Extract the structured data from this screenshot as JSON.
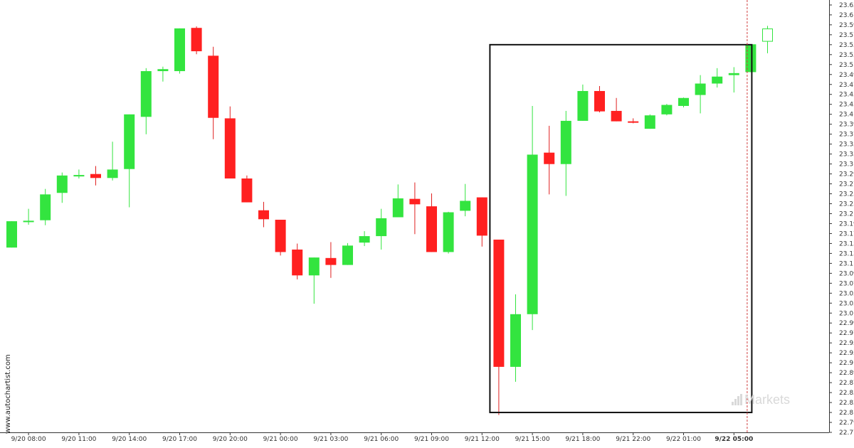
{
  "watermark": "www.autochartist.com",
  "brand": {
    "logo_text": "Markets",
    "icon": "bar-chart-logo-icon"
  },
  "colors": {
    "up": "#33e43f",
    "down": "#ff2020",
    "wick": "#33e43f",
    "wick_down": "#e02020",
    "pattern_box": "#111111",
    "current_line": "#d04040"
  },
  "chart_data": {
    "type": "candlestick",
    "title": "",
    "xlabel": "",
    "ylabel": "",
    "ylim": [
      22.7722,
      23.6321
    ],
    "y_ticks": [
      "23.6321",
      "23.6122",
      "23.5922",
      "23.5722",
      "23.5522",
      "23.5322",
      "23.5122",
      "23.4922",
      "23.4722",
      "23.4522",
      "23.4322",
      "23.4122",
      "23.3922",
      "23.3722",
      "23.3522",
      "23.3322",
      "23.3122",
      "23.2922",
      "23.2722",
      "23.2522",
      "23.2322",
      "23.2122",
      "23.1922",
      "23.1722",
      "23.1522",
      "23.1322",
      "23.1122",
      "23.0922",
      "23.0722",
      "23.0522",
      "23.0322",
      "23.0122",
      "22.9922",
      "22.9722",
      "22.9522",
      "22.9322",
      "22.9122",
      "22.8922",
      "22.8722",
      "22.8522",
      "22.8322",
      "22.8122",
      "22.7922",
      "22.7722"
    ],
    "x_ticks": [
      {
        "label": "9/20 08:00",
        "index": 1
      },
      {
        "label": "9/20 11:00",
        "index": 4
      },
      {
        "label": "9/20 14:00",
        "index": 7
      },
      {
        "label": "9/20 17:00",
        "index": 10
      },
      {
        "label": "9/20 20:00",
        "index": 13
      },
      {
        "label": "9/21 00:00",
        "index": 16
      },
      {
        "label": "9/21 03:00",
        "index": 19
      },
      {
        "label": "9/21 06:00",
        "index": 22
      },
      {
        "label": "9/21 09:00",
        "index": 25
      },
      {
        "label": "9/21 12:00",
        "index": 28
      },
      {
        "label": "9/21 15:00",
        "index": 31
      },
      {
        "label": "9/21 18:00",
        "index": 34
      },
      {
        "label": "9/21 22:00",
        "index": 37
      },
      {
        "label": "9/22 01:00",
        "index": 40
      },
      {
        "label": "9/22 05:00",
        "index": 43,
        "bold": true
      }
    ],
    "candles": [
      {
        "o": 23.144,
        "c": 23.197,
        "h": 23.197,
        "l": 23.144
      },
      {
        "o": 23.197,
        "c": 23.198,
        "h": 23.222,
        "l": 23.19
      },
      {
        "o": 23.199,
        "c": 23.251,
        "h": 23.262,
        "l": 23.189
      },
      {
        "o": 23.254,
        "c": 23.289,
        "h": 23.295,
        "l": 23.234
      },
      {
        "o": 23.289,
        "c": 23.29,
        "h": 23.301,
        "l": 23.283
      },
      {
        "o": 23.292,
        "c": 23.284,
        "h": 23.308,
        "l": 23.269
      },
      {
        "o": 23.284,
        "c": 23.301,
        "h": 23.357,
        "l": 23.279
      },
      {
        "o": 23.302,
        "c": 23.412,
        "h": 23.412,
        "l": 23.225
      },
      {
        "o": 23.407,
        "c": 23.499,
        "h": 23.505,
        "l": 23.372
      },
      {
        "o": 23.499,
        "c": 23.503,
        "h": 23.508,
        "l": 23.478
      },
      {
        "o": 23.499,
        "c": 23.585,
        "h": 23.585,
        "l": 23.494
      },
      {
        "o": 23.586,
        "c": 23.539,
        "h": 23.589,
        "l": 23.533
      },
      {
        "o": 23.53,
        "c": 23.405,
        "h": 23.548,
        "l": 23.362
      },
      {
        "o": 23.404,
        "c": 23.283,
        "h": 23.428,
        "l": 23.283
      },
      {
        "o": 23.283,
        "c": 23.235,
        "h": 23.289,
        "l": 23.235
      },
      {
        "o": 23.219,
        "c": 23.201,
        "h": 23.236,
        "l": 23.185
      },
      {
        "o": 23.2,
        "c": 23.135,
        "h": 23.2,
        "l": 23.128
      },
      {
        "o": 23.14,
        "c": 23.088,
        "h": 23.152,
        "l": 23.08
      },
      {
        "o": 23.088,
        "c": 23.124,
        "h": 23.124,
        "l": 23.031
      },
      {
        "o": 23.123,
        "c": 23.109,
        "h": 23.155,
        "l": 23.083
      },
      {
        "o": 23.109,
        "c": 23.148,
        "h": 23.153,
        "l": 23.109
      },
      {
        "o": 23.154,
        "c": 23.167,
        "h": 23.177,
        "l": 23.147
      },
      {
        "o": 23.167,
        "c": 23.203,
        "h": 23.222,
        "l": 23.14
      },
      {
        "o": 23.205,
        "c": 23.243,
        "h": 23.271,
        "l": 23.205
      },
      {
        "o": 23.242,
        "c": 23.231,
        "h": 23.275,
        "l": 23.171
      },
      {
        "o": 23.227,
        "c": 23.135,
        "h": 23.253,
        "l": 23.135
      },
      {
        "o": 23.135,
        "c": 23.215,
        "h": 23.216,
        "l": 23.132
      },
      {
        "o": 23.218,
        "c": 23.238,
        "h": 23.272,
        "l": 23.207
      },
      {
        "o": 23.245,
        "c": 23.168,
        "h": 23.245,
        "l": 23.146
      },
      {
        "o": 23.16,
        "c": 22.904,
        "h": 23.16,
        "l": 22.807
      },
      {
        "o": 22.904,
        "c": 23.01,
        "h": 23.05,
        "l": 22.874
      },
      {
        "o": 23.01,
        "c": 23.331,
        "h": 23.429,
        "l": 22.978
      },
      {
        "o": 23.335,
        "c": 23.312,
        "h": 23.389,
        "l": 23.251
      },
      {
        "o": 23.312,
        "c": 23.399,
        "h": 23.419,
        "l": 23.248
      },
      {
        "o": 23.399,
        "c": 23.459,
        "h": 23.472,
        "l": 23.399
      },
      {
        "o": 23.459,
        "c": 23.418,
        "h": 23.469,
        "l": 23.416
      },
      {
        "o": 23.419,
        "c": 23.398,
        "h": 23.445,
        "l": 23.398
      },
      {
        "o": 23.398,
        "c": 23.396,
        "h": 23.404,
        "l": 23.394
      },
      {
        "o": 23.383,
        "c": 23.41,
        "h": 23.412,
        "l": 23.383
      },
      {
        "o": 23.412,
        "c": 23.431,
        "h": 23.433,
        "l": 23.41
      },
      {
        "o": 23.429,
        "c": 23.445,
        "h": 23.446,
        "l": 23.426
      },
      {
        "o": 23.451,
        "c": 23.474,
        "h": 23.491,
        "l": 23.414
      },
      {
        "o": 23.474,
        "c": 23.488,
        "h": 23.505,
        "l": 23.466
      },
      {
        "o": 23.491,
        "c": 23.495,
        "h": 23.507,
        "l": 23.456
      },
      {
        "o": 23.497,
        "c": 23.553,
        "h": 23.553,
        "l": 23.497
      },
      {
        "o": 23.559,
        "c": 23.584,
        "h": 23.59,
        "l": 23.535,
        "open_box": true
      }
    ],
    "pattern_box": {
      "start_index": 29,
      "end_index": 44,
      "top": 23.5522,
      "bottom": 22.8122
    },
    "current_time_index": 44,
    "grid": false,
    "legend": "none"
  }
}
